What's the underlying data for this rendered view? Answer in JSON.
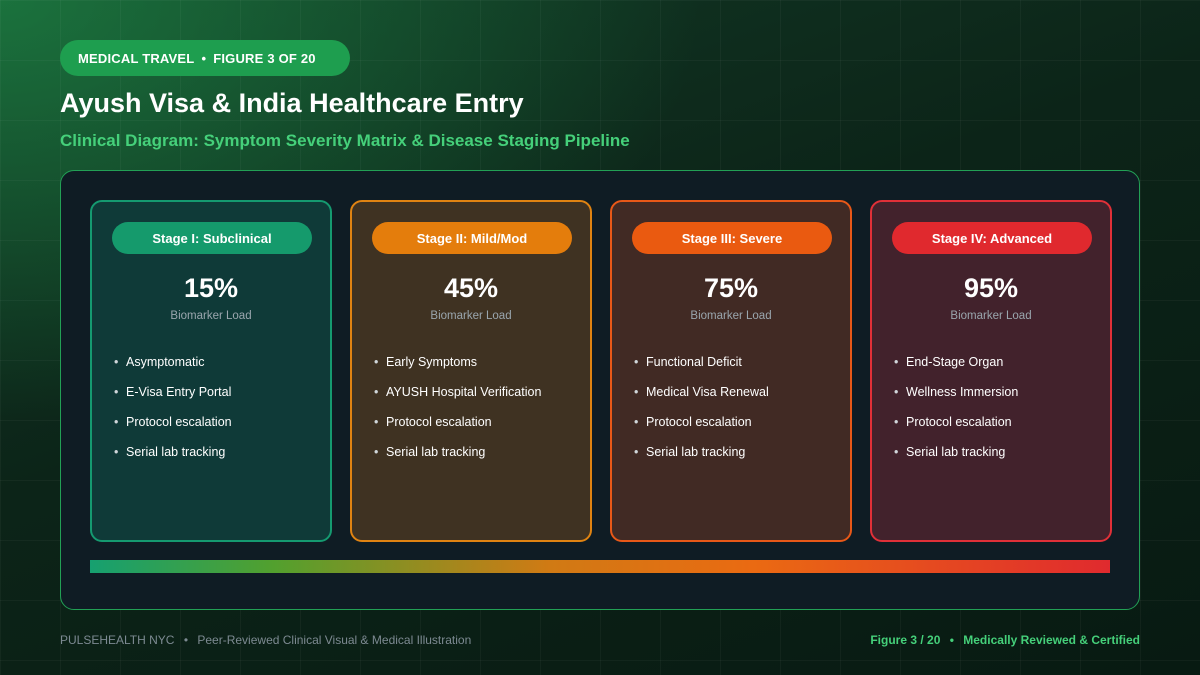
{
  "tag": {
    "category": "MEDICAL TRAVEL",
    "figure": "FIGURE 3 OF 20"
  },
  "title": "Ayush Visa & India Healthcare Entry",
  "subtitle": "Clinical Diagram: Symptom Severity Matrix & Disease Staging Pipeline",
  "stages": [
    {
      "label": "Stage I: Subclinical",
      "percent": "15%",
      "percent_label": "Biomarker Load",
      "items": [
        "Asymptomatic",
        "E-Visa Entry Portal",
        "Protocol escalation",
        "Serial lab tracking"
      ]
    },
    {
      "label": "Stage II: Mild/Mod",
      "percent": "45%",
      "percent_label": "Biomarker Load",
      "items": [
        "Early Symptoms",
        "AYUSH Hospital Verification",
        "Protocol escalation",
        "Serial lab tracking"
      ]
    },
    {
      "label": "Stage III: Severe",
      "percent": "75%",
      "percent_label": "Biomarker Load",
      "items": [
        "Functional Deficit",
        "Medical Visa Renewal",
        "Protocol escalation",
        "Serial lab tracking"
      ]
    },
    {
      "label": "Stage IV: Advanced",
      "percent": "95%",
      "percent_label": "Biomarker Load",
      "items": [
        "End-Stage Organ",
        "Wellness Immersion",
        "Protocol escalation",
        "Serial lab tracking"
      ]
    }
  ],
  "footer": {
    "brand": "PULSEHEALTH NYC",
    "description": "Peer-Reviewed Clinical Visual & Medical Illustration",
    "figure": "Figure 3 / 20",
    "certification": "Medically Reviewed & Certified"
  },
  "colors": {
    "accent": "#45d07a",
    "stage_1": "#159a6c",
    "stage_2": "#e47d0c",
    "stage_3": "#ea5a10",
    "stage_4": "#e0292e"
  }
}
